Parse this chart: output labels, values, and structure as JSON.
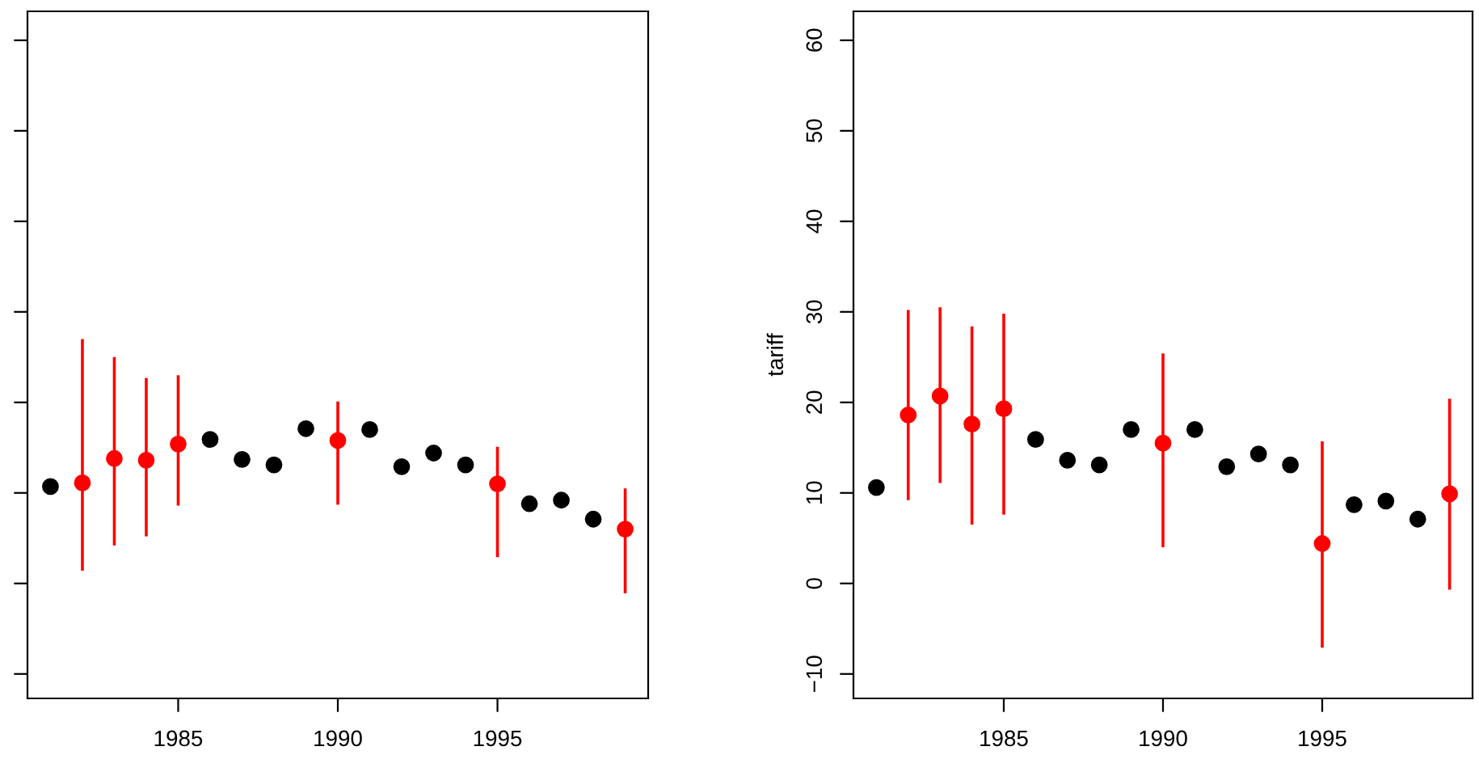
{
  "chart_data": [
    {
      "type": "scatter",
      "xlim": [
        1980.28,
        1999.72
      ],
      "xticks": [
        1985,
        1990,
        1995
      ],
      "ylim": [
        -12.7,
        63.2
      ],
      "yticks": [
        -10,
        0,
        10,
        20,
        30,
        40,
        50,
        60
      ],
      "tick_labels": "x",
      "marker": "circle",
      "grid": false,
      "legend": false,
      "series": [
        {
          "color": "#000000",
          "x": [
            1981,
            1986,
            1987,
            1988,
            1989,
            1991,
            1992,
            1993,
            1994,
            1996,
            1997,
            1998
          ],
          "values": [
            10.7,
            15.9,
            13.7,
            13.1,
            17.1,
            17.0,
            12.9,
            14.4,
            13.1,
            8.8,
            9.2,
            7.1
          ]
        },
        {
          "color": "#ff0000",
          "x": [
            1982,
            1983,
            1984,
            1985,
            1990,
            1995,
            1999
          ],
          "values": [
            11.1,
            13.8,
            13.6,
            15.4,
            15.8,
            11.0,
            6.0
          ],
          "errors": [
            [
              1.4,
              27.0
            ],
            [
              4.2,
              25.0
            ],
            [
              5.2,
              22.7
            ],
            [
              8.6,
              23.0
            ],
            [
              8.7,
              20.1
            ],
            [
              2.9,
              15.1
            ],
            [
              -1.1,
              10.5
            ]
          ]
        }
      ]
    },
    {
      "type": "scatter",
      "ylabel": "tariff",
      "xlim": [
        1980.28,
        1999.72
      ],
      "xticks": [
        1985,
        1990,
        1995
      ],
      "ylim": [
        -12.7,
        63.2
      ],
      "yticks": [
        {
          "value": -10,
          "label": "−10"
        },
        0,
        10,
        20,
        30,
        40,
        50,
        60
      ],
      "marker": "circle",
      "grid": false,
      "legend": false,
      "series": [
        {
          "color": "#000000",
          "x": [
            1981,
            1986,
            1987,
            1988,
            1989,
            1991,
            1992,
            1993,
            1994,
            1996,
            1997,
            1998
          ],
          "values": [
            10.6,
            15.9,
            13.6,
            13.1,
            17.0,
            17.0,
            12.9,
            14.3,
            13.1,
            8.7,
            9.1,
            7.1
          ]
        },
        {
          "color": "#ff0000",
          "x": [
            1982,
            1983,
            1984,
            1985,
            1990,
            1995,
            1999
          ],
          "values": [
            18.6,
            20.7,
            17.6,
            19.3,
            15.5,
            4.4,
            9.9
          ],
          "errors": [
            [
              9.2,
              30.2
            ],
            [
              11.1,
              30.5
            ],
            [
              6.5,
              28.4
            ],
            [
              7.6,
              29.8
            ],
            [
              4.0,
              25.4
            ],
            [
              -7.1,
              15.7
            ],
            [
              -0.7,
              20.4
            ]
          ]
        }
      ]
    }
  ]
}
